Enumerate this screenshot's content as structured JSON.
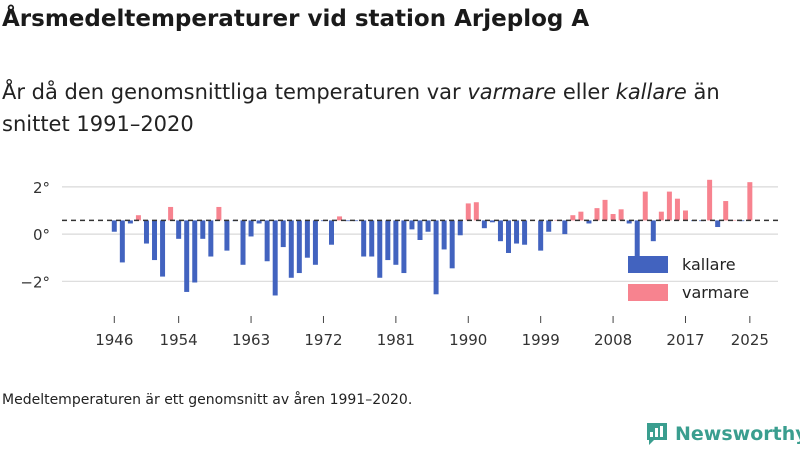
{
  "title": "Årsmedeltemperaturer vid station Arjeplog A",
  "subtitle": {
    "part1": "År då den genomsnittliga temperaturen var ",
    "warmer": "varmare",
    "part2": " eller ",
    "colder": "kallare",
    "part3": " än snittet 1991–2020"
  },
  "note": "Medeltemperaturen är ett genomsnitt av åren 1991–2020.",
  "brand": "Newsworthy",
  "colors": {
    "colder": "#4263bf",
    "warmer": "#f7838f",
    "grid": "#d9d9d9",
    "reference": "#333333",
    "brand": "#3a9e8f"
  },
  "chart_data": {
    "type": "bar",
    "baseline": 0.58,
    "ylim": [
      -3.3,
      2.8
    ],
    "yticks": [
      -2,
      0,
      2
    ],
    "ytick_labels": [
      "−2°",
      "0°",
      "2°"
    ],
    "xticks": [
      1946,
      1954,
      1963,
      1972,
      1981,
      1990,
      1999,
      2008,
      2017,
      2025
    ],
    "xlim": [
      1939.5,
      2028.5
    ],
    "legend": [
      {
        "key": "colder",
        "label": "kallare"
      },
      {
        "key": "warmer",
        "label": "varmare"
      }
    ],
    "years": [
      1946,
      1947,
      1948,
      1949,
      1950,
      1951,
      1952,
      1953,
      1954,
      1955,
      1956,
      1957,
      1958,
      1959,
      1960,
      1961,
      1962,
      1963,
      1964,
      1965,
      1966,
      1967,
      1968,
      1969,
      1970,
      1971,
      1972,
      1973,
      1974,
      1975,
      1976,
      1977,
      1978,
      1979,
      1980,
      1981,
      1982,
      1983,
      1984,
      1985,
      1986,
      1987,
      1988,
      1989,
      1990,
      1991,
      1992,
      1993,
      1994,
      1995,
      1996,
      1997,
      1998,
      1999,
      2000,
      2001,
      2002,
      2003,
      2004,
      2005,
      2006,
      2007,
      2008,
      2009,
      2010,
      2011,
      2012,
      2013,
      2014,
      2015,
      2016,
      2017,
      2018,
      2019,
      2020,
      2021,
      2022,
      2023,
      2024,
      2025
    ],
    "values": [
      0.1,
      -1.2,
      0.45,
      0.8,
      -0.4,
      -1.1,
      -1.8,
      1.15,
      -0.2,
      -2.45,
      -2.05,
      -0.2,
      -0.95,
      1.15,
      -0.7,
      0.55,
      -1.3,
      -0.1,
      0.45,
      -1.15,
      -2.6,
      -0.55,
      -1.85,
      -1.65,
      -1.0,
      -1.3,
      0.55,
      -0.45,
      0.75,
      0.55,
      0.55,
      -0.95,
      -0.95,
      -1.85,
      -1.1,
      -1.3,
      -1.65,
      0.2,
      -0.25,
      0.1,
      -2.55,
      -0.65,
      -1.45,
      -0.05,
      1.3,
      1.35,
      0.25,
      0.5,
      -0.3,
      -0.8,
      -0.4,
      -0.45,
      0.6,
      -0.7,
      0.1,
      0.6,
      0.0,
      0.8,
      0.95,
      0.45,
      1.1,
      1.45,
      0.85,
      1.05,
      0.45,
      -1.5,
      1.8,
      -0.3,
      0.95,
      1.8,
      1.5,
      1.0,
      0.55,
      0.55,
      2.3,
      0.3,
      1.4,
      0.6,
      0.55,
      2.2
    ]
  }
}
